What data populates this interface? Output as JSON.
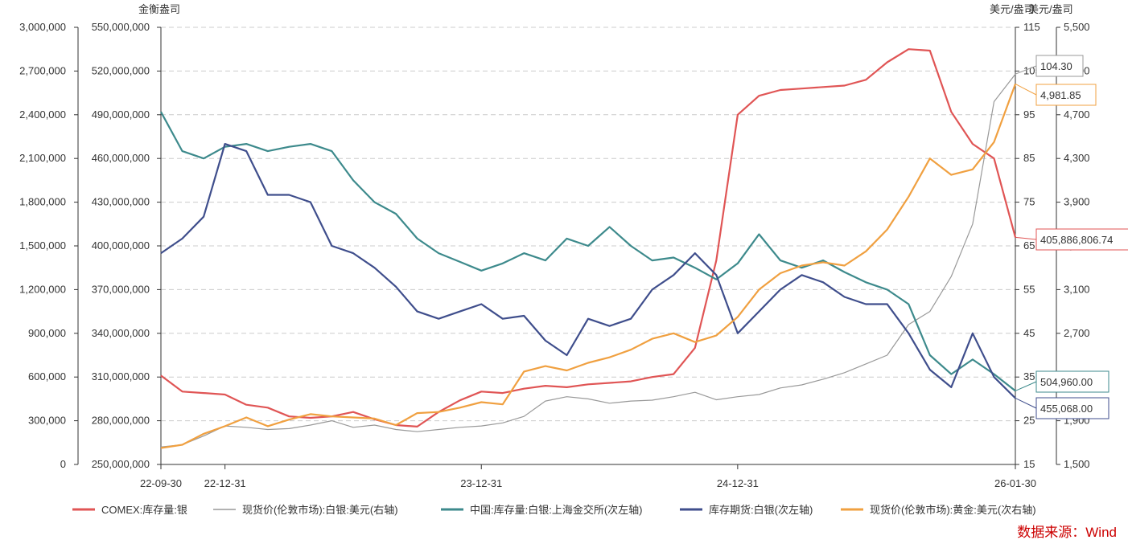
{
  "chart_data": {
    "type": "line",
    "axes": {
      "left": {
        "title": "金衡盎司",
        "ticks": [
          "0",
          "300,000",
          "600,000",
          "900,000",
          "1,200,000",
          "1,500,000",
          "1,800,000",
          "2,100,000",
          "2,400,000",
          "2,700,000",
          "3,000,000"
        ],
        "range": [
          0,
          3000000
        ]
      },
      "left2": {
        "ticks": [
          "250,000,000",
          "280,000,000",
          "310,000,000",
          "340,000,000",
          "370,000,000",
          "400,000,000",
          "430,000,000",
          "460,000,000",
          "490,000,000",
          "520,000,000",
          "550,000,000"
        ],
        "range": [
          250000000,
          550000000
        ]
      },
      "right": {
        "title": "美元/盎司",
        "ticks": [
          "15",
          "25",
          "35",
          "45",
          "55",
          "65",
          "75",
          "85",
          "95",
          "105",
          "115"
        ],
        "range": [
          15,
          115
        ]
      },
      "right2": {
        "title": "美元/盎司",
        "ticks": [
          "1,500",
          "1,900",
          "2,300",
          "2,700",
          "3,100",
          "3,500",
          "3,900",
          "4,300",
          "4,700",
          "5,100",
          "5,500"
        ],
        "range": [
          1500,
          5500
        ]
      }
    },
    "x_ticks": [
      "22-09-30",
      "22-12-31",
      "23-12-31",
      "24-12-31",
      "26-01-30"
    ],
    "x_tick_positions": [
      0,
      3,
      15,
      27,
      40
    ],
    "x_range": [
      0,
      40
    ],
    "grid": true,
    "legend_position": "bottom",
    "series": [
      {
        "name": "COMEX:库存量:银",
        "color": "#e05555",
        "axis": "left2",
        "x": [
          0,
          1,
          2,
          3,
          4,
          5,
          6,
          7,
          8,
          9,
          10,
          11,
          12,
          13,
          14,
          15,
          16,
          17,
          18,
          19,
          20,
          21,
          22,
          23,
          24,
          25,
          26,
          27,
          28,
          29,
          30,
          31,
          32,
          33,
          34,
          35,
          36,
          37,
          38,
          39,
          40
        ],
        "values": [
          311000000,
          300000000,
          299000000,
          298000000,
          291000000,
          289000000,
          283000000,
          282000000,
          283000000,
          286000000,
          281000000,
          277000000,
          276000000,
          286000000,
          294000000,
          300000000,
          299000000,
          302000000,
          304000000,
          303000000,
          305000000,
          306000000,
          307000000,
          310000000,
          312000000,
          330000000,
          390000000,
          490000000,
          503000000,
          507000000,
          508000000,
          509000000,
          510000000,
          514000000,
          526000000,
          535000000,
          534000000,
          492000000,
          470000000,
          460000000,
          405886806.74
        ]
      },
      {
        "name": "现货价(伦敦市场):白银:美元(右轴)",
        "color": "#999999",
        "axis": "right",
        "x": [
          0,
          1,
          2,
          3,
          4,
          5,
          6,
          7,
          8,
          9,
          10,
          11,
          12,
          13,
          14,
          15,
          16,
          17,
          18,
          19,
          20,
          21,
          22,
          23,
          24,
          25,
          26,
          27,
          28,
          29,
          30,
          31,
          32,
          33,
          34,
          35,
          36,
          37,
          38,
          39,
          40
        ],
        "values": [
          19.0,
          19.5,
          21.5,
          23.8,
          23.5,
          23.0,
          23.2,
          24.0,
          25.0,
          23.5,
          24.0,
          23.0,
          22.5,
          23.0,
          23.5,
          23.8,
          24.5,
          26.0,
          29.5,
          30.5,
          30.0,
          29.0,
          29.5,
          29.7,
          30.5,
          31.5,
          29.8,
          30.5,
          31.0,
          32.5,
          33.2,
          34.5,
          36.0,
          38.0,
          40.0,
          47.0,
          50.0,
          58.0,
          70.0,
          98.0,
          104.3
        ]
      },
      {
        "name": "中国:库存量:白银:上海金交所(次左轴)",
        "color": "#3d8a8c",
        "axis": "left",
        "x": [
          0,
          1,
          2,
          3,
          4,
          5,
          6,
          7,
          8,
          9,
          10,
          11,
          12,
          13,
          14,
          15,
          16,
          17,
          18,
          19,
          20,
          21,
          22,
          23,
          24,
          25,
          26,
          27,
          28,
          29,
          30,
          31,
          32,
          33,
          34,
          35,
          36,
          37,
          38,
          39,
          40
        ],
        "values": [
          2420000,
          2150000,
          2100000,
          2180000,
          2200000,
          2150000,
          2180000,
          2200000,
          2150000,
          1950000,
          1800000,
          1720000,
          1550000,
          1450000,
          1390000,
          1330000,
          1380000,
          1450000,
          1400000,
          1550000,
          1500000,
          1630000,
          1500000,
          1400000,
          1420000,
          1350000,
          1270000,
          1380000,
          1580000,
          1400000,
          1350000,
          1400000,
          1320000,
          1250000,
          1200000,
          1100000,
          750000,
          620000,
          720000,
          620000,
          504960.0
        ]
      },
      {
        "name": "库存期货:白银(次左轴)",
        "color": "#3f4e8c",
        "axis": "left",
        "x": [
          0,
          1,
          2,
          3,
          4,
          5,
          6,
          7,
          8,
          9,
          10,
          11,
          12,
          13,
          14,
          15,
          16,
          17,
          18,
          19,
          20,
          21,
          22,
          23,
          24,
          25,
          26,
          27,
          28,
          29,
          30,
          31,
          32,
          33,
          34,
          35,
          36,
          37,
          38,
          39,
          40
        ],
        "values": [
          1450000,
          1550000,
          1700000,
          2200000,
          2150000,
          1850000,
          1850000,
          1800000,
          1500000,
          1450000,
          1350000,
          1220000,
          1050000,
          1000000,
          1050000,
          1100000,
          1000000,
          1020000,
          850000,
          750000,
          1000000,
          950000,
          1000000,
          1200000,
          1300000,
          1450000,
          1300000,
          900000,
          1050000,
          1200000,
          1300000,
          1250000,
          1150000,
          1100000,
          1100000,
          900000,
          650000,
          530000,
          900000,
          600000,
          455068.0
        ]
      },
      {
        "name": "现货价(伦敦市场):黄金:美元(次右轴)",
        "color": "#f0a040",
        "axis": "right2",
        "x": [
          0,
          1,
          2,
          3,
          4,
          5,
          6,
          7,
          8,
          9,
          10,
          11,
          12,
          13,
          14,
          15,
          16,
          17,
          18,
          19,
          20,
          21,
          22,
          23,
          24,
          25,
          26,
          27,
          28,
          29,
          30,
          31,
          32,
          33,
          34,
          35,
          36,
          37,
          38,
          39,
          40
        ],
        "values": [
          1650,
          1680,
          1780,
          1850,
          1930,
          1850,
          1910,
          1960,
          1940,
          1930,
          1920,
          1860,
          1970,
          1980,
          2020,
          2070,
          2050,
          2350,
          2400,
          2360,
          2430,
          2480,
          2550,
          2650,
          2700,
          2620,
          2680,
          2850,
          3100,
          3250,
          3320,
          3350,
          3320,
          3450,
          3650,
          3950,
          4300,
          4150,
          4200,
          4450,
          4981.85
        ]
      }
    ],
    "end_labels": [
      {
        "text": "104.30",
        "series": 1
      },
      {
        "text": "4,981.85",
        "series": 4
      },
      {
        "text": "405,886,806.74",
        "series": 0
      },
      {
        "text": "504,960.00",
        "series": 2
      },
      {
        "text": "455,068.00",
        "series": 3
      }
    ]
  },
  "source_label": "数据来源：Wind"
}
